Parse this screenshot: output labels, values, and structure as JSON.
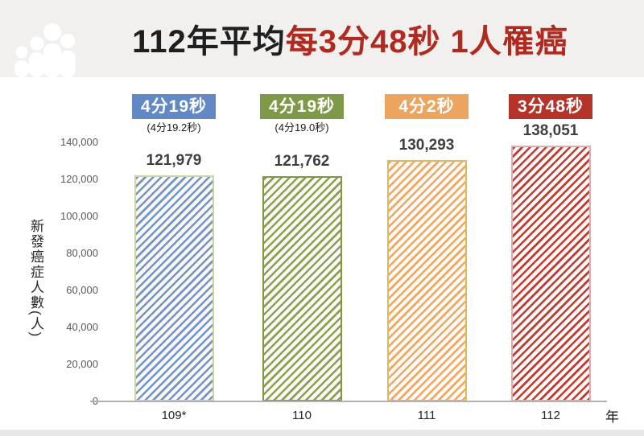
{
  "header": {
    "title_black": "112年平均",
    "title_red": "每3分48秒 1人罹癌",
    "title_red_color": "#b02a20",
    "bg_color": "#f1f0ee",
    "logo_icon": "people-group-icon"
  },
  "chart_data": {
    "type": "bar",
    "title": "112年平均每3分48秒 1人罹癌",
    "xlabel": "年",
    "ylabel": "新發癌症人數(人)",
    "ylim": [
      0,
      140000
    ],
    "grid": false,
    "legend": "none",
    "ytick_values": [
      0,
      20000,
      40000,
      60000,
      80000,
      100000,
      120000,
      140000
    ],
    "ytick_labels": [
      "0",
      "20,000",
      "40,000",
      "60,000",
      "80,000",
      "100,000",
      "120,000",
      "140,000"
    ],
    "categories": [
      "109*",
      "110",
      "111",
      "112"
    ],
    "values": [
      121979,
      121762,
      130293,
      138051
    ],
    "value_labels": [
      "121,979",
      "121,762",
      "130,293",
      "138,051"
    ],
    "badges": [
      "4分19秒",
      "4分19秒",
      "4分2秒",
      "3分48秒"
    ],
    "sub_labels": [
      "(4分19.2秒)",
      "(4分19.0秒)",
      "",
      ""
    ],
    "badge_colors": [
      "#6288c5",
      "#7e9a49",
      "#eba55e",
      "#b6332a"
    ],
    "stripe_colors": [
      "#7494c8",
      "#8ba050",
      "#efa95f",
      "#c23b31"
    ],
    "border_colors": [
      "#c9d6a2",
      "#7d9747",
      "#e4b85a",
      "#eaa8ab"
    ],
    "bar_fill_style": "diagonal-hatch"
  }
}
